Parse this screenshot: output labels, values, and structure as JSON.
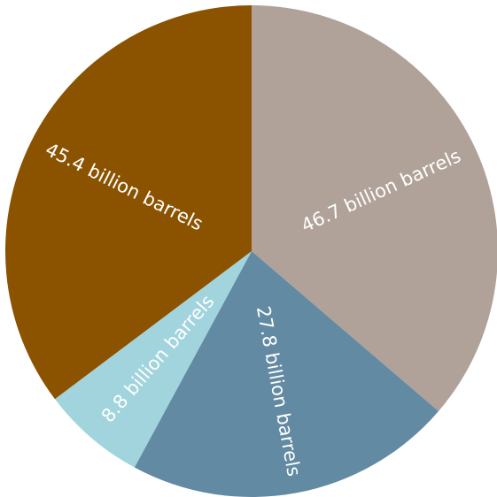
{
  "chart_data": {
    "type": "pie",
    "title": "",
    "unit": "billion barrels",
    "slices": [
      {
        "value": 46.7,
        "label": "46.7 billion barrels",
        "color": "#b0a298"
      },
      {
        "value": 27.8,
        "label": "27.8 billion barrels",
        "color": "#628aa2"
      },
      {
        "value": 8.8,
        "label": "8.8 billion barrels",
        "color": "#a1d4dd"
      },
      {
        "value": 45.4,
        "label": "45.4 billion barrels",
        "color": "#8b5300"
      }
    ],
    "start_angle_deg": 0,
    "direction": "clockwise",
    "legend": "none"
  }
}
